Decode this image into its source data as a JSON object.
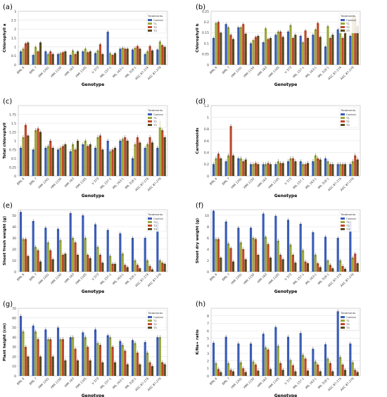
{
  "figure": {
    "treatments": [
      "Control",
      "T1",
      "T2",
      "T3"
    ],
    "colors": [
      "#3a5db8",
      "#9aa83a",
      "#c0492b",
      "#5a4a1c"
    ],
    "legend_title": "Treatments"
  },
  "chart_data": [
    {
      "panel": "(a)",
      "type": "bar",
      "ylabel": "Chlorophyll a",
      "xlabel": "Genotype",
      "ylim": [
        0,
        3.0
      ],
      "yticks": [
        0,
        0.5,
        1.0,
        1.5,
        2.0,
        2.5,
        3.0
      ],
      "categories": [
        "BML 6",
        "BML 7",
        "HMI 1201",
        "HMI 1150",
        "HMI 163",
        "HMI 1105",
        "V 373",
        "IML 157-1",
        "IML 163-1",
        "IML 318-1",
        "AGC 87-274",
        "AGC 87-279"
      ],
      "series": [
        {
          "name": "Control",
          "values": [
            0.75,
            0.55,
            0.75,
            0.6,
            0.55,
            0.75,
            0.65,
            1.85,
            0.9,
            0.85,
            0.6,
            0.85
          ]
        },
        {
          "name": "T1",
          "values": [
            0.9,
            1.0,
            0.6,
            0.65,
            0.8,
            0.9,
            0.8,
            0.65,
            0.95,
            0.95,
            0.75,
            1.3
          ]
        },
        {
          "name": "T2",
          "values": [
            1.2,
            0.75,
            0.75,
            0.7,
            0.6,
            0.7,
            1.15,
            0.55,
            0.9,
            1.05,
            1.05,
            1.1
          ]
        },
        {
          "name": "T3",
          "values": [
            1.25,
            1.25,
            0.6,
            0.75,
            0.75,
            0.75,
            0.6,
            0.65,
            0.9,
            0.9,
            0.8,
            1.0
          ]
        }
      ]
    },
    {
      "panel": "(b)",
      "type": "bar",
      "ylabel": "Chlorophyll b",
      "xlabel": "Genotype",
      "ylim": [
        0,
        0.25
      ],
      "yticks": [
        0,
        0.05,
        0.1,
        0.15,
        0.2,
        0.25
      ],
      "categories": [
        "BML 6",
        "BML 7",
        "HMI 1201",
        "HMI 1150",
        "HMI 163",
        "HMI 1105",
        "V 373",
        "IML 157-1",
        "IML 163-1",
        "IML 318-1",
        "AGC 87-274",
        "AGC 87-279"
      ],
      "series": [
        {
          "name": "Control",
          "values": [
            0.125,
            0.19,
            0.175,
            0.1,
            0.105,
            0.14,
            0.155,
            0.135,
            0.14,
            0.085,
            0.165,
            0.135
          ]
        },
        {
          "name": "T1",
          "values": [
            0.195,
            0.175,
            0.175,
            0.115,
            0.17,
            0.155,
            0.185,
            0.105,
            0.165,
            0.18,
            0.18,
            0.23
          ]
        },
        {
          "name": "T2",
          "values": [
            0.2,
            0.14,
            0.19,
            0.13,
            0.12,
            0.155,
            0.125,
            0.16,
            0.195,
            0.125,
            0.125,
            0.22
          ]
        },
        {
          "name": "T3",
          "values": [
            0.15,
            0.12,
            0.145,
            0.135,
            0.125,
            0.13,
            0.14,
            0.125,
            0.13,
            0.14,
            0.16,
            0.18
          ]
        }
      ]
    },
    {
      "panel": "(c)",
      "type": "bar",
      "ylabel": "Total chlorophyll",
      "xlabel": "Genotype",
      "ylim": [
        0,
        2.0
      ],
      "yticks": [
        0,
        0.25,
        0.5,
        0.75,
        1.0,
        1.25,
        1.5,
        1.75
      ],
      "categories": [
        "BML 6",
        "BML 7",
        "HMI 1201",
        "HMI 1150",
        "HMI 163",
        "HMI 1105",
        "V 373",
        "IML 157-1",
        "IML 163-1",
        "IML 318-1",
        "AGC 87-274",
        "AGC 87-279"
      ],
      "series": [
        {
          "name": "Control",
          "values": [
            0.8,
            0.75,
            0.8,
            0.75,
            0.7,
            0.9,
            0.8,
            1.0,
            1.0,
            0.5,
            0.8,
            0.8
          ]
        },
        {
          "name": "T1",
          "values": [
            1.1,
            1.3,
            0.85,
            0.8,
            0.9,
            1.0,
            1.1,
            0.7,
            1.05,
            0.9,
            0.9,
            1.55
          ]
        },
        {
          "name": "T2",
          "values": [
            1.45,
            1.35,
            1.0,
            0.85,
            0.75,
            0.85,
            1.15,
            0.75,
            1.1,
            1.1,
            1.1,
            1.3
          ]
        },
        {
          "name": "T3",
          "values": [
            1.15,
            1.25,
            0.8,
            0.9,
            1.0,
            0.9,
            0.75,
            0.8,
            1.0,
            0.95,
            0.95,
            1.1
          ]
        }
      ]
    },
    {
      "panel": "(d)",
      "type": "bar",
      "ylabel": "Carotenoids",
      "xlabel": "Genotype",
      "ylim": [
        0,
        1.2
      ],
      "yticks": [
        0,
        0.2,
        0.4,
        0.6,
        0.8,
        1.0,
        1.2
      ],
      "categories": [
        "BML 6",
        "BML 7",
        "HMI 1201",
        "HMI 1150",
        "HMI 163",
        "HMI 1105",
        "V 373",
        "IML 157-1",
        "IML 163-1",
        "IML 318-1",
        "AGC 87-274",
        "AGC 87-279"
      ],
      "series": [
        {
          "name": "Control",
          "values": [
            0.2,
            0.25,
            0.3,
            0.2,
            0.2,
            0.2,
            0.25,
            0.25,
            0.25,
            0.3,
            0.2,
            0.2
          ]
        },
        {
          "name": "T1",
          "values": [
            0.3,
            0.35,
            0.3,
            0.2,
            0.2,
            0.25,
            0.3,
            0.2,
            0.35,
            0.25,
            0.2,
            0.25
          ]
        },
        {
          "name": "T2",
          "values": [
            0.38,
            0.85,
            0.25,
            0.22,
            0.22,
            0.22,
            0.3,
            0.2,
            0.3,
            0.2,
            0.2,
            0.35
          ]
        },
        {
          "name": "T3",
          "values": [
            0.3,
            0.35,
            0.28,
            0.2,
            0.2,
            0.22,
            0.25,
            0.22,
            0.28,
            0.2,
            0.2,
            0.28
          ]
        }
      ]
    },
    {
      "panel": "(e)",
      "type": "bar",
      "ylabel": "Shoot fresh weight (g)",
      "xlabel": "Genotype",
      "ylim": [
        0,
        55
      ],
      "yticks": [
        0,
        10,
        20,
        30,
        40,
        50
      ],
      "categories": [
        "BML 6",
        "BML 7",
        "HMI 1201",
        "HMI 1150",
        "HMI 163",
        "HMI 1105",
        "V 373",
        "IML 157-1",
        "IML 163-1",
        "IML 318-1",
        "AGC 87-274",
        "AGC 87-279"
      ],
      "series": [
        {
          "name": "Control",
          "values": [
            53,
            45,
            39,
            38,
            52,
            50,
            42,
            37,
            34,
            30,
            30,
            45
          ]
        },
        {
          "name": "T1",
          "values": [
            29,
            22,
            26,
            28,
            30,
            30,
            22,
            14,
            16,
            10,
            10,
            10
          ]
        },
        {
          "name": "T2",
          "values": [
            29,
            19,
            19,
            15,
            26,
            15,
            15,
            7,
            6,
            6,
            5,
            8
          ]
        },
        {
          "name": "T3",
          "values": [
            14,
            9,
            11,
            16,
            15,
            12,
            8,
            7,
            4,
            3,
            2,
            7
          ]
        }
      ]
    },
    {
      "panel": "(f)",
      "type": "bar",
      "ylabel": "Shoot dry weight (g)",
      "xlabel": "Genotype",
      "ylim": [
        0,
        11
      ],
      "yticks": [
        0,
        2,
        4,
        6,
        8,
        10
      ],
      "categories": [
        "BML 6",
        "BML 7",
        "HMI 1201",
        "HMI 1150",
        "HMI 163",
        "HMI 1105",
        "V 373",
        "IML 157-1",
        "IML 163-1",
        "IML 318-1",
        "AGC 87-274",
        "AGC 87-279"
      ],
      "series": [
        {
          "name": "Control",
          "values": [
            10.8,
            8.9,
            7.8,
            7.8,
            10.3,
            9.9,
            9.2,
            8.5,
            7.0,
            6.2,
            6.0,
            9.0
          ]
        },
        {
          "name": "T1",
          "values": [
            5.8,
            5.0,
            5.2,
            6.0,
            6.2,
            5.5,
            4.8,
            3.8,
            3.0,
            2.0,
            2.0,
            2.5
          ]
        },
        {
          "name": "T2",
          "values": [
            5.8,
            4.2,
            4.0,
            5.8,
            4.9,
            3.0,
            3.0,
            1.8,
            1.5,
            1.2,
            1.0,
            3.2
          ]
        },
        {
          "name": "T3",
          "values": [
            2.5,
            1.8,
            2.2,
            3.0,
            2.5,
            2.2,
            1.6,
            1.5,
            0.8,
            0.6,
            0.5,
            1.5
          ]
        }
      ]
    },
    {
      "panel": "(g)",
      "type": "bar",
      "ylabel": "Plant height (cm)",
      "xlabel": "Genotype",
      "ylim": [
        0,
        70
      ],
      "yticks": [
        0,
        10,
        20,
        30,
        40,
        50,
        60,
        70
      ],
      "categories": [
        "BML 6",
        "BML 7",
        "HMI 1201",
        "HMI 1150",
        "HMI 163",
        "HMI 1105",
        "V 373",
        "IML 157-1",
        "IML 163-1",
        "IML 318-1",
        "AGC 87-274",
        "AGC 87-279"
      ],
      "series": [
        {
          "name": "Control",
          "values": [
            62,
            52,
            48,
            50,
            40,
            45,
            48,
            42,
            36,
            37,
            35,
            40
          ]
        },
        {
          "name": "T1",
          "values": [
            46,
            46,
            38,
            38,
            40,
            40,
            34,
            40,
            32,
            34,
            24,
            40
          ]
        },
        {
          "name": "T2",
          "values": [
            30,
            38,
            38,
            38,
            28,
            30,
            32,
            30,
            26,
            24,
            14,
            14
          ]
        },
        {
          "name": "T3",
          "values": [
            20,
            20,
            20,
            16,
            16,
            16,
            14,
            14,
            12,
            12,
            10,
            12
          ]
        }
      ]
    },
    {
      "panel": "(h)",
      "type": "bar",
      "ylabel": "K/Na+ ratio",
      "xlabel": "Genotype",
      "ylim": [
        0,
        9
      ],
      "yticks": [
        0,
        1,
        2,
        3,
        4,
        5,
        6,
        7,
        8
      ],
      "categories": [
        "BML 6",
        "BML 7",
        "HMI 1201",
        "HMI 1150",
        "HMI 163",
        "HMI 1105",
        "V 373",
        "IML 157-1",
        "IML 163-1",
        "IML 318-1",
        "AGC 87-274",
        "AGC 87-279"
      ],
      "series": [
        {
          "name": "Control",
          "values": [
            4.4,
            5.2,
            4.3,
            4.3,
            5.6,
            6.5,
            5.2,
            5.7,
            3.6,
            4.2,
            8.6,
            4.3
          ]
        },
        {
          "name": "T1",
          "values": [
            1.7,
            1.7,
            1.8,
            1.9,
            3.8,
            4.0,
            2.1,
            2.8,
            1.9,
            2.3,
            2.5,
            1.8
          ]
        },
        {
          "name": "T2",
          "values": [
            0.9,
            0.8,
            1.0,
            1.5,
            3.5,
            1.7,
            1.4,
            2.3,
            1.5,
            1.7,
            1.5,
            0.8
          ]
        },
        {
          "name": "T3",
          "values": [
            0.5,
            0.6,
            0.5,
            0.7,
            0.9,
            0.8,
            0.6,
            0.7,
            0.6,
            0.6,
            0.8,
            0.5
          ]
        }
      ]
    }
  ]
}
